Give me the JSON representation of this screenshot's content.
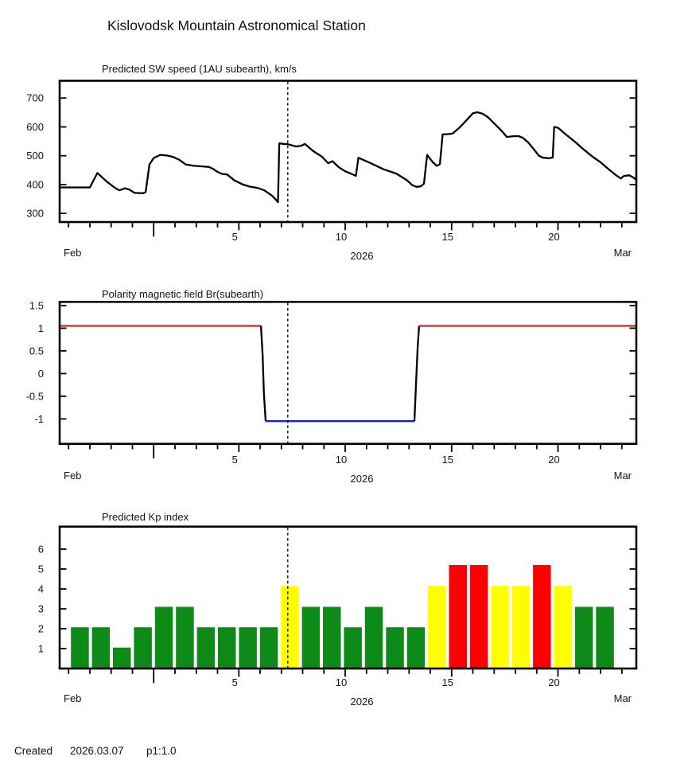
{
  "page": {
    "title": "Kislovodsk Mountain Astronomical Station"
  },
  "footer": {
    "label": "Created",
    "date": "2026.03.07",
    "version": "p1:1.0"
  },
  "axis": {
    "month_left": "Feb",
    "month_right": "Mar",
    "year": "2026",
    "day_start": -3.42,
    "day_end": 23.68,
    "day_labels": [
      5,
      10,
      15,
      20
    ],
    "long_tick_day": 1,
    "now_line_day": 7.3
  },
  "colors": {
    "frame": "#000000",
    "text": "#141414",
    "now_line": "#000000",
    "speed_line": "#000000",
    "polarity_positive": "#c62828",
    "polarity_negative": "#1c1ccd",
    "kp_green": "#0e8a18",
    "kp_yellow": "#ffff00",
    "kp_red": "#ff0000"
  },
  "chart_data": [
    {
      "type": "line",
      "title": "Predicted SW speed (1AU subearth), km/s",
      "ylim": [
        270,
        760
      ],
      "yticks": [
        300,
        400,
        500,
        600,
        700
      ],
      "line_color": "#000000",
      "points": [
        [
          -3.42,
          390
        ],
        [
          -2.0,
          390
        ],
        [
          -1.65,
          440
        ],
        [
          -1.2,
          410
        ],
        [
          -0.85,
          390
        ],
        [
          -0.62,
          380
        ],
        [
          -0.35,
          387
        ],
        [
          -0.15,
          383
        ],
        [
          0.1,
          371
        ],
        [
          0.5,
          370
        ],
        [
          0.62,
          374
        ],
        [
          0.8,
          470
        ],
        [
          1.0,
          492
        ],
        [
          1.3,
          503
        ],
        [
          1.6,
          501
        ],
        [
          1.9,
          496
        ],
        [
          2.2,
          486
        ],
        [
          2.5,
          470
        ],
        [
          2.9,
          465
        ],
        [
          3.3,
          463
        ],
        [
          3.6,
          461
        ],
        [
          3.78,
          455
        ],
        [
          4.0,
          444
        ],
        [
          4.2,
          437
        ],
        [
          4.45,
          435
        ],
        [
          4.8,
          414
        ],
        [
          5.2,
          400
        ],
        [
          5.5,
          393
        ],
        [
          5.9,
          388
        ],
        [
          6.2,
          380
        ],
        [
          6.55,
          362
        ],
        [
          6.75,
          347
        ],
        [
          6.84,
          339
        ],
        [
          6.9,
          543
        ],
        [
          7.1,
          541
        ],
        [
          7.3,
          540
        ],
        [
          7.7,
          532
        ],
        [
          7.95,
          535
        ],
        [
          8.1,
          541
        ],
        [
          8.5,
          516
        ],
        [
          8.9,
          497
        ],
        [
          9.2,
          474
        ],
        [
          9.4,
          481
        ],
        [
          9.7,
          460
        ],
        [
          10.0,
          446
        ],
        [
          10.3,
          437
        ],
        [
          10.5,
          430
        ],
        [
          10.62,
          493
        ],
        [
          11.2,
          474
        ],
        [
          11.8,
          453
        ],
        [
          12.4,
          438
        ],
        [
          12.9,
          415
        ],
        [
          13.15,
          398
        ],
        [
          13.35,
          392
        ],
        [
          13.55,
          394
        ],
        [
          13.7,
          403
        ],
        [
          13.85,
          503
        ],
        [
          14.1,
          479
        ],
        [
          14.3,
          465
        ],
        [
          14.45,
          471
        ],
        [
          14.58,
          574
        ],
        [
          14.85,
          575
        ],
        [
          15.05,
          577
        ],
        [
          15.35,
          596
        ],
        [
          15.7,
          623
        ],
        [
          16.0,
          647
        ],
        [
          16.2,
          651
        ],
        [
          16.45,
          646
        ],
        [
          16.7,
          634
        ],
        [
          17.0,
          612
        ],
        [
          17.35,
          586
        ],
        [
          17.6,
          565
        ],
        [
          17.9,
          568
        ],
        [
          18.15,
          568
        ],
        [
          18.35,
          562
        ],
        [
          18.6,
          546
        ],
        [
          18.9,
          519
        ],
        [
          19.1,
          500
        ],
        [
          19.3,
          493
        ],
        [
          19.6,
          491
        ],
        [
          19.75,
          494
        ],
        [
          19.82,
          600
        ],
        [
          20.0,
          597
        ],
        [
          20.35,
          575
        ],
        [
          20.8,
          548
        ],
        [
          21.2,
          522
        ],
        [
          21.6,
          498
        ],
        [
          22.0,
          477
        ],
        [
          22.35,
          455
        ],
        [
          22.7,
          434
        ],
        [
          22.95,
          421
        ],
        [
          23.1,
          430
        ],
        [
          23.35,
          432
        ],
        [
          23.55,
          424
        ],
        [
          23.68,
          416
        ]
      ]
    },
    {
      "type": "segments",
      "title": "Polarity magnetic field  Br(subearth)",
      "ylim": [
        -1.55,
        1.58
      ],
      "yticks": [
        -1,
        -0.5,
        0,
        0.5,
        1,
        1.5
      ],
      "segment_colors": {
        "positive": "#c62828",
        "negative": "#1c1ccd",
        "transition": "#000000"
      },
      "segments": [
        {
          "level": "positive",
          "points": [
            [
              -3.42,
              1.05
            ],
            [
              6.04,
              1.05
            ]
          ]
        },
        {
          "level": "transition",
          "points": [
            [
              6.04,
              1.05
            ],
            [
              6.12,
              0.4
            ],
            [
              6.18,
              -0.45
            ],
            [
              6.26,
              -1.05
            ]
          ]
        },
        {
          "level": "negative",
          "points": [
            [
              6.26,
              -1.05
            ],
            [
              13.25,
              -1.05
            ]
          ]
        },
        {
          "level": "transition",
          "points": [
            [
              13.25,
              -1.05
            ],
            [
              13.33,
              -0.2
            ],
            [
              13.4,
              0.55
            ],
            [
              13.47,
              1.05
            ]
          ]
        },
        {
          "level": "positive",
          "points": [
            [
              13.47,
              1.05
            ],
            [
              23.68,
              1.05
            ]
          ]
        }
      ]
    },
    {
      "type": "bar",
      "title": "Predicted Kp index",
      "ylim": [
        0,
        7.13
      ],
      "yticks": [
        1,
        2,
        3,
        4,
        5,
        6
      ],
      "bars_start_day": -2.89,
      "bars_step_days": 0.987,
      "bar_width_days": 0.84,
      "level_colors": {
        "green": "#0e8a18",
        "yellow": "#ffff00",
        "red": "#ff0000"
      },
      "values": [
        2.07,
        2.07,
        1.05,
        2.07,
        3.1,
        3.1,
        2.07,
        2.07,
        2.07,
        2.07,
        4.15,
        3.1,
        3.1,
        2.07,
        3.1,
        2.07,
        2.07,
        4.15,
        5.2,
        5.2,
        4.15,
        4.15,
        5.2,
        4.15,
        3.1,
        3.1
      ],
      "levels": [
        "green",
        "green",
        "green",
        "green",
        "green",
        "green",
        "green",
        "green",
        "green",
        "green",
        "yellow",
        "green",
        "green",
        "green",
        "green",
        "green",
        "green",
        "yellow",
        "red",
        "red",
        "yellow",
        "yellow",
        "red",
        "yellow",
        "green",
        "green"
      ]
    }
  ]
}
